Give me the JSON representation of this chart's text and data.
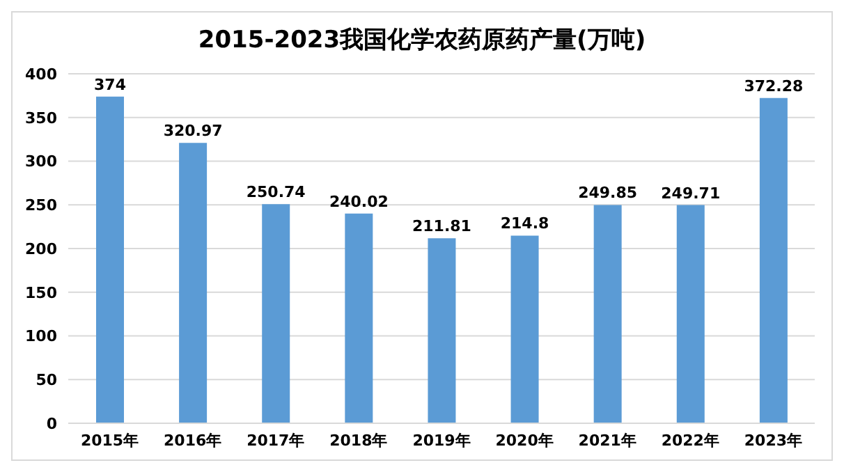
{
  "chart_data": {
    "type": "bar",
    "title": "2015-2023我国化学农药原药产量(万吨)",
    "categories": [
      "2015年",
      "2016年",
      "2017年",
      "2018年",
      "2019年",
      "2020年",
      "2021年",
      "2022年",
      "2023年"
    ],
    "values": [
      374,
      320.97,
      250.74,
      240.02,
      211.81,
      214.8,
      249.85,
      249.71,
      372.28
    ],
    "color": "#5b9bd5",
    "ylim": [
      0,
      400
    ],
    "yticks": [
      0,
      50,
      100,
      150,
      200,
      250,
      300,
      350,
      400
    ],
    "grid": "y",
    "data_labels": true
  }
}
